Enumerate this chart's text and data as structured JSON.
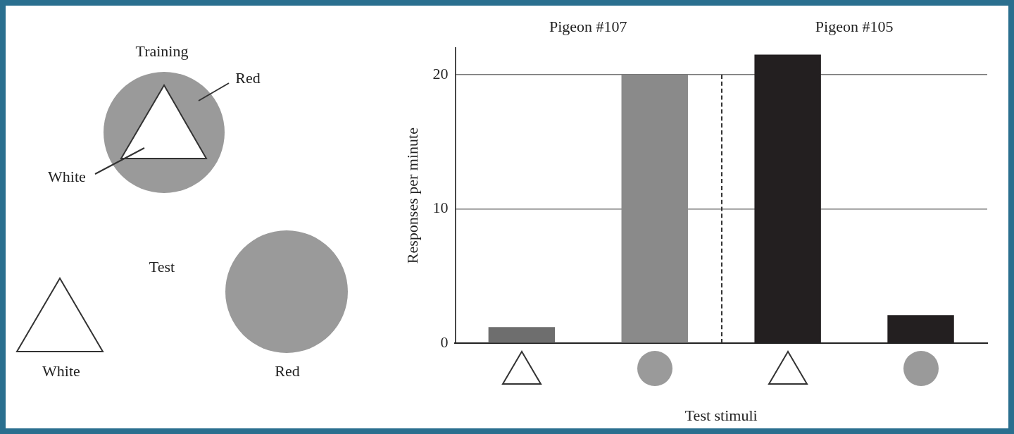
{
  "chart_data": {
    "type": "bar",
    "categories": [
      null,
      null,
      null,
      null
    ],
    "values": [
      1.2,
      20,
      21.5,
      2.1
    ],
    "colors": [
      "#6e6e6e",
      "#8a8a8a",
      "#231f20",
      "#231f20"
    ],
    "ylabel": "Responses per minute",
    "xlabel": "Test stimuli",
    "ylim": [
      0,
      22
    ],
    "yticks": [
      0,
      10,
      20
    ],
    "grid": "y",
    "annotations": [
      "Pigeon #107",
      "Pigeon #105",
      "Training",
      "Red",
      "White",
      "Test",
      "White",
      "Red"
    ]
  }
}
